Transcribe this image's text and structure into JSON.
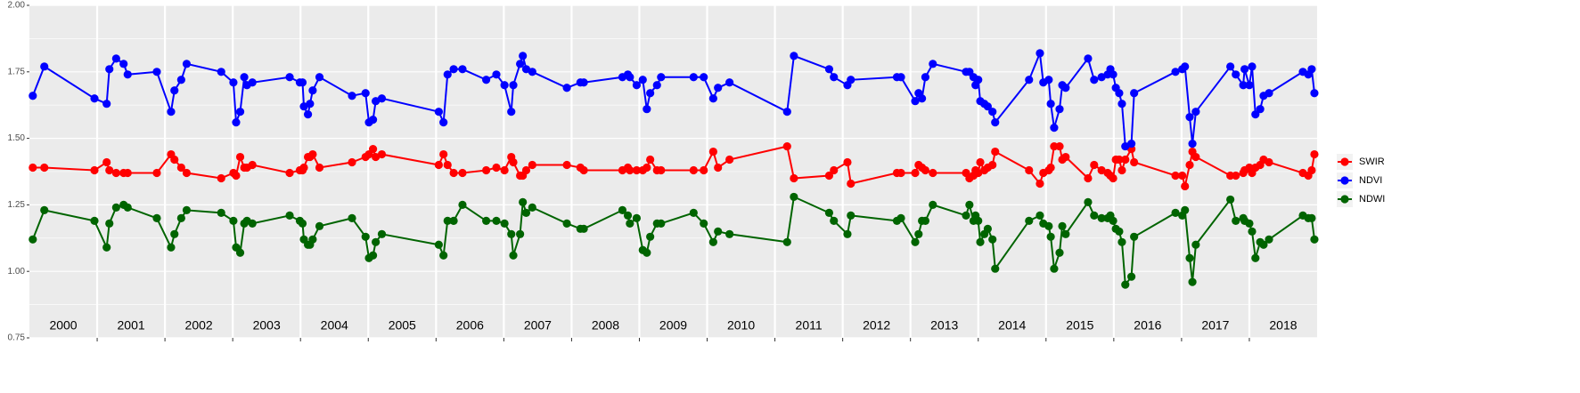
{
  "chart_data": {
    "type": "line",
    "x": [
      2000.05,
      2000.22,
      2000.96,
      2001.14,
      2001.18,
      2001.28,
      2001.39,
      2001.45,
      2001.88,
      2002.09,
      2002.14,
      2002.24,
      2002.32,
      2002.83,
      2003.01,
      2003.05,
      2003.11,
      2003.17,
      2003.21,
      2003.29,
      2003.84,
      2003.99,
      2004.03,
      2004.05,
      2004.11,
      2004.14,
      2004.18,
      2004.28,
      2004.76,
      2004.96,
      2005.01,
      2005.07,
      2005.11,
      2005.2,
      2006.04,
      2006.11,
      2006.17,
      2006.26,
      2006.39,
      2006.74,
      2006.89,
      2007.01,
      2007.11,
      2007.14,
      2007.24,
      2007.28,
      2007.33,
      2007.42,
      2007.93,
      2008.13,
      2008.18,
      2008.75,
      2008.83,
      2008.86,
      2008.96,
      2009.05,
      2009.11,
      2009.16,
      2009.26,
      2009.32,
      2009.8,
      2009.95,
      2010.09,
      2010.16,
      2010.33,
      2011.18,
      2011.28,
      2011.8,
      2011.87,
      2012.07,
      2012.12,
      2012.8,
      2012.86,
      2013.07,
      2013.12,
      2013.17,
      2013.22,
      2013.33,
      2013.82,
      2013.87,
      2013.93,
      2013.96,
      2014.0,
      2014.03,
      2014.09,
      2014.14,
      2014.21,
      2014.25,
      2014.75,
      2014.91,
      2014.96,
      2015.04,
      2015.07,
      2015.12,
      2015.2,
      2015.24,
      2015.29,
      2015.62,
      2015.71,
      2015.82,
      2015.91,
      2015.95,
      2015.99,
      2016.03,
      2016.08,
      2016.12,
      2016.17,
      2016.26,
      2016.3,
      2016.91,
      2017.01,
      2017.05,
      2017.12,
      2017.16,
      2017.21,
      2017.72,
      2017.8,
      2017.91,
      2017.93,
      2018.0,
      2018.04,
      2018.09,
      2018.16,
      2018.21,
      2018.29,
      2018.79,
      2018.87,
      2018.92,
      2018.96
    ],
    "series": [
      {
        "name": "SWIR",
        "color": "#ff0000",
        "values": [
          1.39,
          1.39,
          1.38,
          1.41,
          1.38,
          1.37,
          1.37,
          1.37,
          1.37,
          1.44,
          1.42,
          1.39,
          1.37,
          1.35,
          1.37,
          1.36,
          1.43,
          1.39,
          1.39,
          1.4,
          1.37,
          1.38,
          1.38,
          1.39,
          1.43,
          1.43,
          1.44,
          1.39,
          1.41,
          1.43,
          1.44,
          1.46,
          1.43,
          1.44,
          1.4,
          1.44,
          1.4,
          1.37,
          1.37,
          1.38,
          1.39,
          1.38,
          1.43,
          1.41,
          1.36,
          1.36,
          1.38,
          1.4,
          1.4,
          1.39,
          1.38,
          1.38,
          1.39,
          1.38,
          1.38,
          1.38,
          1.39,
          1.42,
          1.38,
          1.38,
          1.38,
          1.38,
          1.45,
          1.39,
          1.42,
          1.47,
          1.35,
          1.36,
          1.38,
          1.41,
          1.33,
          1.37,
          1.37,
          1.37,
          1.4,
          1.39,
          1.38,
          1.37,
          1.37,
          1.35,
          1.36,
          1.38,
          1.37,
          1.41,
          1.38,
          1.39,
          1.4,
          1.45,
          1.38,
          1.33,
          1.37,
          1.38,
          1.39,
          1.47,
          1.47,
          1.42,
          1.43,
          1.35,
          1.4,
          1.38,
          1.37,
          1.36,
          1.35,
          1.42,
          1.42,
          1.38,
          1.42,
          1.46,
          1.41,
          1.36,
          1.36,
          1.32,
          1.4,
          1.45,
          1.43,
          1.36,
          1.36,
          1.37,
          1.38,
          1.39,
          1.37,
          1.39,
          1.4,
          1.42,
          1.41,
          1.37,
          1.36,
          1.38,
          1.44
        ]
      },
      {
        "name": "NDVI",
        "color": "#0000ff",
        "values": [
          1.66,
          1.77,
          1.65,
          1.63,
          1.76,
          1.8,
          1.78,
          1.74,
          1.75,
          1.6,
          1.68,
          1.72,
          1.78,
          1.75,
          1.71,
          1.56,
          1.6,
          1.73,
          1.7,
          1.71,
          1.73,
          1.71,
          1.71,
          1.62,
          1.59,
          1.63,
          1.68,
          1.73,
          1.66,
          1.67,
          1.56,
          1.57,
          1.64,
          1.65,
          1.6,
          1.56,
          1.74,
          1.76,
          1.76,
          1.72,
          1.74,
          1.7,
          1.6,
          1.7,
          1.78,
          1.81,
          1.76,
          1.75,
          1.69,
          1.71,
          1.71,
          1.73,
          1.74,
          1.73,
          1.7,
          1.72,
          1.61,
          1.67,
          1.7,
          1.73,
          1.73,
          1.73,
          1.65,
          1.69,
          1.71,
          1.6,
          1.81,
          1.76,
          1.73,
          1.7,
          1.72,
          1.73,
          1.73,
          1.64,
          1.67,
          1.65,
          1.73,
          1.78,
          1.75,
          1.75,
          1.73,
          1.7,
          1.72,
          1.64,
          1.63,
          1.62,
          1.6,
          1.56,
          1.72,
          1.82,
          1.71,
          1.72,
          1.63,
          1.54,
          1.61,
          1.7,
          1.69,
          1.8,
          1.72,
          1.73,
          1.74,
          1.76,
          1.74,
          1.69,
          1.67,
          1.63,
          1.47,
          1.48,
          1.67,
          1.75,
          1.76,
          1.77,
          1.58,
          1.48,
          1.6,
          1.77,
          1.74,
          1.7,
          1.76,
          1.7,
          1.77,
          1.59,
          1.61,
          1.66,
          1.67,
          1.75,
          1.74,
          1.76,
          1.67
        ]
      },
      {
        "name": "NDWI",
        "color": "#006400",
        "values": [
          1.12,
          1.23,
          1.19,
          1.09,
          1.18,
          1.24,
          1.25,
          1.24,
          1.2,
          1.09,
          1.14,
          1.2,
          1.23,
          1.22,
          1.19,
          1.09,
          1.07,
          1.18,
          1.19,
          1.18,
          1.21,
          1.19,
          1.18,
          1.12,
          1.1,
          1.1,
          1.12,
          1.17,
          1.2,
          1.13,
          1.05,
          1.06,
          1.11,
          1.14,
          1.1,
          1.06,
          1.19,
          1.19,
          1.25,
          1.19,
          1.19,
          1.18,
          1.14,
          1.06,
          1.14,
          1.26,
          1.22,
          1.24,
          1.18,
          1.16,
          1.16,
          1.23,
          1.21,
          1.18,
          1.2,
          1.08,
          1.07,
          1.13,
          1.18,
          1.18,
          1.22,
          1.18,
          1.11,
          1.15,
          1.14,
          1.11,
          1.28,
          1.22,
          1.19,
          1.14,
          1.21,
          1.19,
          1.2,
          1.11,
          1.14,
          1.19,
          1.19,
          1.25,
          1.21,
          1.25,
          1.19,
          1.21,
          1.19,
          1.11,
          1.14,
          1.16,
          1.12,
          1.01,
          1.19,
          1.21,
          1.18,
          1.17,
          1.13,
          1.01,
          1.07,
          1.17,
          1.14,
          1.26,
          1.21,
          1.2,
          1.2,
          1.21,
          1.19,
          1.16,
          1.15,
          1.11,
          0.95,
          0.98,
          1.13,
          1.22,
          1.21,
          1.23,
          1.05,
          0.96,
          1.1,
          1.27,
          1.19,
          1.2,
          1.19,
          1.18,
          1.15,
          1.05,
          1.11,
          1.1,
          1.12,
          1.21,
          1.2,
          1.2,
          1.12
        ]
      }
    ],
    "xlim": [
      2000,
      2019
    ],
    "xticks": [
      {
        "value": 2000.5,
        "label": "2000"
      },
      {
        "value": 2001.5,
        "label": "2001"
      },
      {
        "value": 2002.5,
        "label": "2002"
      },
      {
        "value": 2003.5,
        "label": "2003"
      },
      {
        "value": 2004.5,
        "label": "2004"
      },
      {
        "value": 2005.5,
        "label": "2005"
      },
      {
        "value": 2006.5,
        "label": "2006"
      },
      {
        "value": 2007.5,
        "label": "2007"
      },
      {
        "value": 2008.5,
        "label": "2008"
      },
      {
        "value": 2009.5,
        "label": "2009"
      },
      {
        "value": 2010.5,
        "label": "2010"
      },
      {
        "value": 2011.5,
        "label": "2011"
      },
      {
        "value": 2012.5,
        "label": "2012"
      },
      {
        "value": 2013.5,
        "label": "2013"
      },
      {
        "value": 2014.5,
        "label": "2014"
      },
      {
        "value": 2015.5,
        "label": "2015"
      },
      {
        "value": 2016.5,
        "label": "2016"
      },
      {
        "value": 2017.5,
        "label": "2017"
      },
      {
        "value": 2018.5,
        "label": "2018"
      }
    ],
    "ylim": [
      0.75,
      2.0
    ],
    "yticks": [
      0.75,
      {
        "value": 1,
        "label": "1.00"
      },
      1.25,
      {
        "value": 1.5,
        "label": "1.50"
      },
      1.75,
      {
        "value": 2,
        "label": "2.00"
      }
    ],
    "grid": true,
    "legend": "right"
  }
}
